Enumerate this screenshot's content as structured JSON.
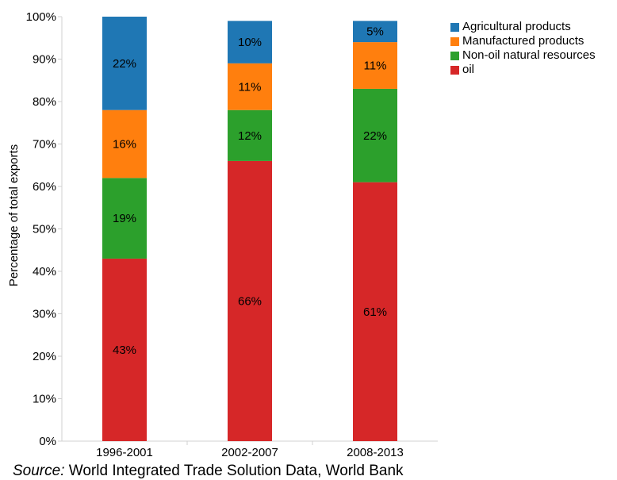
{
  "chart_data": {
    "type": "bar",
    "stacked": true,
    "categories": [
      "1996-2001",
      "2002-2007",
      "2008-2013"
    ],
    "series": [
      {
        "name": "oil",
        "values": [
          43,
          66,
          61
        ],
        "labels": [
          "43%",
          "66%",
          "61%"
        ],
        "color": "#d62728"
      },
      {
        "name": "Non-oil natural resources",
        "values": [
          19,
          12,
          22
        ],
        "labels": [
          "19%",
          "12%",
          "22%"
        ],
        "color": "#2ca02c"
      },
      {
        "name": "Manufactured products",
        "values": [
          16,
          11,
          11
        ],
        "labels": [
          "16%",
          "11%",
          "11%"
        ],
        "color": "#ff7f0e"
      },
      {
        "name": "Agricultural products",
        "values": [
          22,
          10,
          5
        ],
        "labels": [
          "22%",
          "10%",
          "5%"
        ],
        "color": "#1f77b4"
      }
    ],
    "legend": [
      "Agricultural products",
      "Manufactured products",
      "Non-oil natural resources",
      "oil"
    ],
    "legend_position": "top-right",
    "ylabel": "Percentage of total exports",
    "xlabel": "",
    "ylim": [
      0,
      100
    ],
    "yticks": [
      0,
      10,
      20,
      30,
      40,
      50,
      60,
      70,
      80,
      90,
      100
    ],
    "ytick_labels": [
      "0%",
      "10%",
      "20%",
      "30%",
      "40%",
      "50%",
      "60%",
      "70%",
      "80%",
      "90%",
      "100%"
    ],
    "grid": false
  },
  "source": {
    "prefix": "Source:",
    "text": " World Integrated Trade Solution Data, World Bank"
  }
}
